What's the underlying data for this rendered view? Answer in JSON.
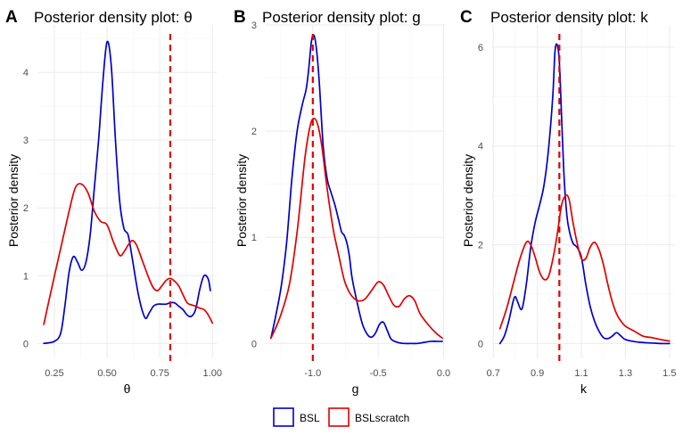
{
  "colors": {
    "BSL": "#0000CD",
    "BSLscratch": "#E00000",
    "vline": "#E00000"
  },
  "legend": {
    "placement": "bottom",
    "items": [
      {
        "label": "BSL",
        "color": "#0000CD"
      },
      {
        "label": "BSLscratch",
        "color": "#E00000"
      }
    ]
  },
  "chart_data": [
    {
      "type": "line",
      "letter": "A",
      "title": "Posterior density plot: θ",
      "xlabel": "θ",
      "ylabel": "Posterior density",
      "xlim": [
        0.17,
        1.02
      ],
      "ylim": [
        -0.22,
        4.7
      ],
      "xticks": [
        0.25,
        0.5,
        0.75,
        1.0
      ],
      "xtick_labels": [
        "0.25",
        "0.50",
        "0.75",
        "1.00"
      ],
      "yticks": [
        0,
        1,
        2,
        3,
        4
      ],
      "ytick_labels": [
        "0",
        "1",
        "2",
        "3",
        "4"
      ],
      "grid": true,
      "vline": 0.8,
      "series": [
        {
          "name": "BSL",
          "x": [
            0.2,
            0.25,
            0.28,
            0.3,
            0.32,
            0.34,
            0.36,
            0.38,
            0.4,
            0.42,
            0.44,
            0.46,
            0.48,
            0.5,
            0.52,
            0.54,
            0.56,
            0.58,
            0.6,
            0.62,
            0.65,
            0.68,
            0.7,
            0.72,
            0.74,
            0.76,
            0.78,
            0.8,
            0.82,
            0.84,
            0.86,
            0.88,
            0.9,
            0.92,
            0.94,
            0.96,
            0.98,
            0.99
          ],
          "y": [
            0.0,
            0.03,
            0.15,
            0.55,
            1.05,
            1.28,
            1.2,
            1.08,
            1.2,
            1.6,
            2.3,
            3.0,
            3.85,
            4.45,
            4.1,
            3.0,
            2.1,
            1.7,
            1.6,
            1.25,
            0.7,
            0.38,
            0.45,
            0.55,
            0.58,
            0.58,
            0.58,
            0.6,
            0.6,
            0.55,
            0.5,
            0.42,
            0.4,
            0.5,
            0.8,
            1.0,
            0.95,
            0.78
          ]
        },
        {
          "name": "BSLscratch",
          "x": [
            0.2,
            0.24,
            0.28,
            0.32,
            0.35,
            0.38,
            0.41,
            0.44,
            0.47,
            0.5,
            0.53,
            0.56,
            0.58,
            0.6,
            0.62,
            0.64,
            0.67,
            0.7,
            0.72,
            0.74,
            0.76,
            0.78,
            0.8,
            0.82,
            0.84,
            0.86,
            0.88,
            0.9,
            0.92,
            0.94,
            0.96,
            0.98,
            1.0
          ],
          "y": [
            0.28,
            0.85,
            1.4,
            1.95,
            2.3,
            2.35,
            2.22,
            1.95,
            1.8,
            1.75,
            1.5,
            1.3,
            1.35,
            1.45,
            1.52,
            1.45,
            1.2,
            0.95,
            0.82,
            0.78,
            0.85,
            0.93,
            0.96,
            0.92,
            0.85,
            0.72,
            0.6,
            0.57,
            0.55,
            0.52,
            0.5,
            0.42,
            0.3
          ]
        }
      ]
    },
    {
      "type": "line",
      "letter": "B",
      "title": "Posterior density plot: g",
      "xlabel": "g",
      "ylabel": "Posterior density",
      "xlim": [
        -1.36,
        0.01
      ],
      "ylim": [
        -0.14,
        3.0
      ],
      "xticks": [
        -1.0,
        -0.5,
        0.0
      ],
      "xtick_labels": [
        "-1.0",
        "-0.5",
        "0.0"
      ],
      "yticks": [
        0,
        1,
        2,
        3
      ],
      "ytick_labels": [
        "0",
        "1",
        "2",
        "3"
      ],
      "grid": true,
      "vline": -1.0,
      "series": [
        {
          "name": "BSL",
          "x": [
            -1.32,
            -1.28,
            -1.24,
            -1.2,
            -1.16,
            -1.12,
            -1.08,
            -1.05,
            -1.03,
            -1.01,
            -0.99,
            -0.97,
            -0.95,
            -0.92,
            -0.89,
            -0.86,
            -0.83,
            -0.8,
            -0.78,
            -0.76,
            -0.74,
            -0.72,
            -0.7,
            -0.66,
            -0.62,
            -0.58,
            -0.55,
            -0.52,
            -0.49,
            -0.46,
            -0.43,
            -0.4,
            -0.35,
            -0.3,
            -0.25,
            -0.2,
            -0.15,
            -0.1,
            -0.05,
            -0.01
          ],
          "y": [
            0.05,
            0.28,
            0.55,
            0.95,
            1.55,
            2.0,
            2.25,
            2.4,
            2.6,
            2.85,
            2.9,
            2.75,
            2.45,
            1.85,
            1.55,
            1.42,
            1.3,
            1.15,
            1.05,
            1.02,
            0.95,
            0.82,
            0.62,
            0.38,
            0.18,
            0.08,
            0.06,
            0.1,
            0.18,
            0.2,
            0.12,
            0.04,
            0.01,
            0.0,
            0.0,
            0.0,
            0.01,
            0.02,
            0.02,
            0.02
          ]
        },
        {
          "name": "BSLscratch",
          "x": [
            -1.32,
            -1.25,
            -1.18,
            -1.12,
            -1.06,
            -1.02,
            -0.99,
            -0.96,
            -0.93,
            -0.9,
            -0.87,
            -0.84,
            -0.8,
            -0.76,
            -0.72,
            -0.68,
            -0.64,
            -0.6,
            -0.55,
            -0.5,
            -0.46,
            -0.42,
            -0.38,
            -0.34,
            -0.3,
            -0.26,
            -0.22,
            -0.18,
            -0.12,
            -0.06,
            -0.01
          ],
          "y": [
            0.05,
            0.25,
            0.55,
            1.05,
            1.75,
            2.05,
            2.12,
            2.05,
            1.85,
            1.55,
            1.28,
            1.05,
            0.82,
            0.6,
            0.48,
            0.42,
            0.4,
            0.42,
            0.5,
            0.58,
            0.55,
            0.45,
            0.36,
            0.35,
            0.42,
            0.45,
            0.4,
            0.28,
            0.18,
            0.1,
            0.05
          ]
        }
      ]
    },
    {
      "type": "line",
      "letter": "C",
      "title": "Posterior density plot: k",
      "xlabel": "k",
      "ylabel": "Posterior density",
      "xlim": [
        0.695,
        1.525
      ],
      "ylim": [
        -0.3,
        6.45
      ],
      "xticks": [
        0.7,
        0.9,
        1.1,
        1.3,
        1.5
      ],
      "xtick_labels": [
        "0.7",
        "0.9",
        "1.1",
        "1.3",
        "1.5"
      ],
      "yticks": [
        0,
        2,
        4,
        6
      ],
      "ytick_labels": [
        "0",
        "2",
        "4",
        "6"
      ],
      "grid": true,
      "vline": 1.0,
      "series": [
        {
          "name": "BSL",
          "x": [
            0.73,
            0.75,
            0.77,
            0.79,
            0.8,
            0.81,
            0.83,
            0.85,
            0.87,
            0.89,
            0.91,
            0.93,
            0.95,
            0.97,
            0.98,
            0.99,
            1.0,
            1.01,
            1.02,
            1.03,
            1.04,
            1.06,
            1.08,
            1.1,
            1.12,
            1.14,
            1.16,
            1.18,
            1.2,
            1.22,
            1.24,
            1.26,
            1.28,
            1.3,
            1.34,
            1.38,
            1.42,
            1.46,
            1.5
          ],
          "y": [
            0.0,
            0.15,
            0.45,
            0.85,
            0.95,
            0.85,
            0.7,
            1.2,
            1.95,
            2.45,
            2.8,
            3.2,
            3.9,
            5.0,
            5.9,
            6.05,
            5.7,
            4.6,
            3.5,
            2.8,
            2.4,
            2.05,
            1.95,
            1.75,
            1.2,
            0.75,
            0.45,
            0.25,
            0.12,
            0.1,
            0.15,
            0.22,
            0.15,
            0.08,
            0.04,
            0.02,
            0.01,
            0.0,
            0.0
          ]
        },
        {
          "name": "BSLscratch",
          "x": [
            0.73,
            0.76,
            0.79,
            0.82,
            0.85,
            0.87,
            0.89,
            0.91,
            0.93,
            0.95,
            0.97,
            0.99,
            1.01,
            1.03,
            1.045,
            1.06,
            1.08,
            1.1,
            1.12,
            1.14,
            1.16,
            1.18,
            1.2,
            1.22,
            1.24,
            1.26,
            1.28,
            1.3,
            1.34,
            1.38,
            1.42,
            1.46,
            1.5
          ],
          "y": [
            0.3,
            0.7,
            1.2,
            1.7,
            2.05,
            2.0,
            1.75,
            1.45,
            1.3,
            1.35,
            1.7,
            2.2,
            2.8,
            3.0,
            2.9,
            2.5,
            2.05,
            1.72,
            1.72,
            1.95,
            2.05,
            1.9,
            1.6,
            1.2,
            0.85,
            0.6,
            0.45,
            0.35,
            0.25,
            0.15,
            0.12,
            0.08,
            0.05
          ]
        }
      ]
    }
  ]
}
